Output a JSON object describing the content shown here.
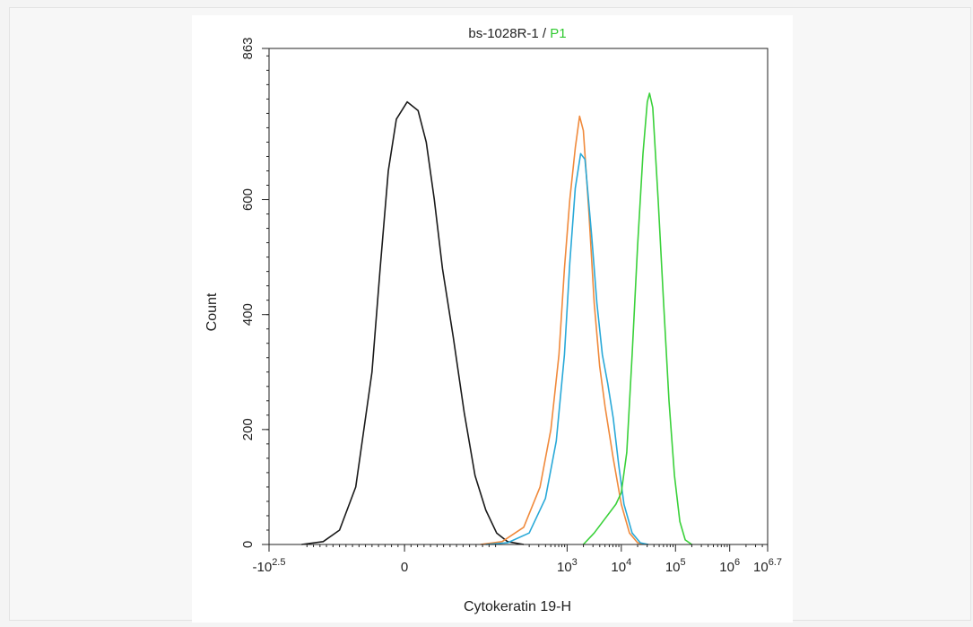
{
  "chart_data": {
    "type": "line",
    "title": {
      "prefix": "bs-1028R-1 / ",
      "gate": "P1",
      "gate_color": "#2ec92e"
    },
    "xlabel": "Cytokeratin 19-H",
    "ylabel": "Count",
    "xscale": "biexponential (log10 decades)",
    "xlim": [
      -2.5,
      6.7
    ],
    "ylim": [
      0,
      863
    ],
    "yticks": [
      0,
      200,
      400,
      600,
      863
    ],
    "ytick_labels": [
      "0",
      "200",
      "400",
      "600",
      "863"
    ],
    "xticks": [
      {
        "value": -2.5,
        "base": "-10",
        "exp": "2.5"
      },
      {
        "value": 0,
        "base": "0",
        "exp": ""
      },
      {
        "value": 3,
        "base": "10",
        "exp": "3"
      },
      {
        "value": 4,
        "base": "10",
        "exp": "4"
      },
      {
        "value": 5,
        "base": "10",
        "exp": "5"
      },
      {
        "value": 6,
        "base": "10",
        "exp": "6"
      },
      {
        "value": 6.7,
        "base": "10",
        "exp": "6.7"
      }
    ],
    "grid": false,
    "series": [
      {
        "color": "#1a1a1a",
        "points": [
          [
            -1.9,
            0
          ],
          [
            -1.5,
            5
          ],
          [
            -1.2,
            25
          ],
          [
            -0.9,
            100
          ],
          [
            -0.6,
            300
          ],
          [
            -0.45,
            480
          ],
          [
            -0.3,
            650
          ],
          [
            -0.15,
            740
          ],
          [
            0.05,
            770
          ],
          [
            0.25,
            755
          ],
          [
            0.4,
            700
          ],
          [
            0.55,
            600
          ],
          [
            0.7,
            480
          ],
          [
            0.9,
            360
          ],
          [
            1.1,
            230
          ],
          [
            1.3,
            120
          ],
          [
            1.5,
            60
          ],
          [
            1.7,
            20
          ],
          [
            1.9,
            5
          ],
          [
            2.2,
            0
          ]
        ]
      },
      {
        "color": "#f08a3c",
        "points": [
          [
            1.4,
            0
          ],
          [
            1.8,
            5
          ],
          [
            2.2,
            30
          ],
          [
            2.5,
            100
          ],
          [
            2.7,
            200
          ],
          [
            2.85,
            330
          ],
          [
            2.95,
            480
          ],
          [
            3.05,
            600
          ],
          [
            3.15,
            690
          ],
          [
            3.23,
            745
          ],
          [
            3.3,
            720
          ],
          [
            3.4,
            580
          ],
          [
            3.5,
            420
          ],
          [
            3.6,
            310
          ],
          [
            3.7,
            240
          ],
          [
            3.85,
            150
          ],
          [
            4.0,
            70
          ],
          [
            4.15,
            20
          ],
          [
            4.3,
            3
          ],
          [
            4.45,
            0
          ]
        ]
      },
      {
        "color": "#29a9d8",
        "points": [
          [
            1.5,
            0
          ],
          [
            1.9,
            3
          ],
          [
            2.3,
            20
          ],
          [
            2.6,
            80
          ],
          [
            2.8,
            180
          ],
          [
            2.95,
            330
          ],
          [
            3.05,
            490
          ],
          [
            3.15,
            620
          ],
          [
            3.25,
            680
          ],
          [
            3.33,
            670
          ],
          [
            3.45,
            540
          ],
          [
            3.55,
            420
          ],
          [
            3.65,
            330
          ],
          [
            3.75,
            280
          ],
          [
            3.85,
            220
          ],
          [
            3.95,
            140
          ],
          [
            4.05,
            70
          ],
          [
            4.2,
            20
          ],
          [
            4.35,
            3
          ],
          [
            4.5,
            0
          ]
        ]
      },
      {
        "color": "#3ad13a",
        "points": [
          [
            3.3,
            0
          ],
          [
            3.5,
            20
          ],
          [
            3.7,
            45
          ],
          [
            3.9,
            70
          ],
          [
            4.0,
            90
          ],
          [
            4.1,
            160
          ],
          [
            4.2,
            330
          ],
          [
            4.3,
            520
          ],
          [
            4.4,
            680
          ],
          [
            4.48,
            770
          ],
          [
            4.52,
            785
          ],
          [
            4.58,
            760
          ],
          [
            4.68,
            600
          ],
          [
            4.78,
            420
          ],
          [
            4.88,
            250
          ],
          [
            4.98,
            120
          ],
          [
            5.08,
            40
          ],
          [
            5.18,
            8
          ],
          [
            5.3,
            0
          ]
        ]
      }
    ]
  }
}
